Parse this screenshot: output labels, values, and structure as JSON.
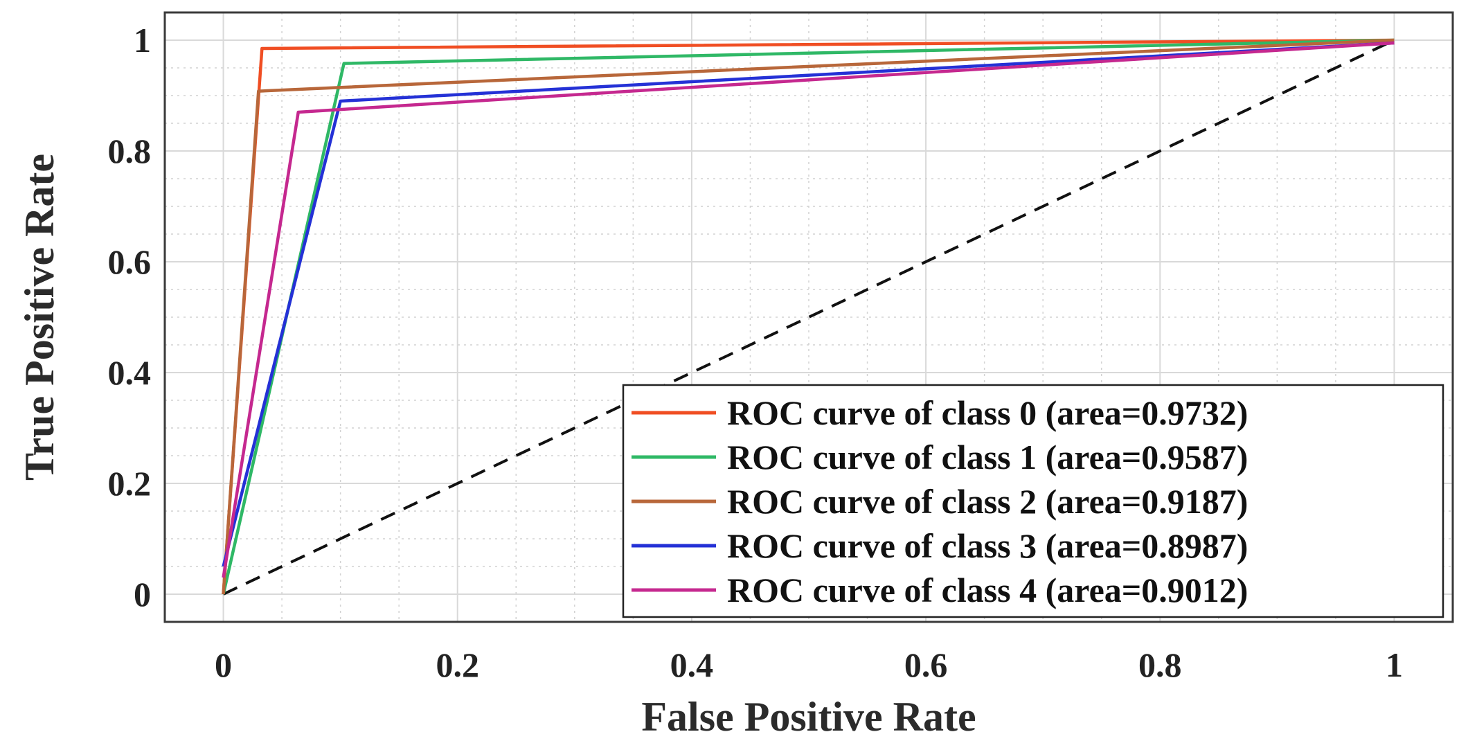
{
  "chart_data": {
    "type": "line",
    "title": "",
    "xlabel": "False Positive Rate",
    "ylabel": "True Positive Rate",
    "xlim": [
      -0.05,
      1.05
    ],
    "ylim": [
      -0.05,
      1.05
    ],
    "xticks": [
      0,
      0.2,
      0.4,
      0.6,
      0.8,
      1
    ],
    "xtick_labels": [
      "0",
      "0.2",
      "0.4",
      "0.6",
      "0.8",
      "1"
    ],
    "yticks": [
      0,
      0.2,
      0.4,
      0.6,
      0.8,
      1
    ],
    "ytick_labels": [
      "0",
      "0.2",
      "0.4",
      "0.6",
      "0.8",
      "1"
    ],
    "grid": true,
    "minor_grid": true,
    "legend_position": "bottom-right",
    "series": [
      {
        "name": "ROC curve of class 0 (area=0.9732)",
        "color": "#f04e23",
        "x": [
          0,
          0.033,
          1
        ],
        "y": [
          0,
          0.985,
          1
        ]
      },
      {
        "name": "ROC curve of class 1 (area=0.9587)",
        "color": "#2fb866",
        "x": [
          0,
          0.103,
          1
        ],
        "y": [
          0,
          0.958,
          1
        ]
      },
      {
        "name": "ROC curve of class 2 (area=0.9187)",
        "color": "#b8673a",
        "x": [
          0,
          0.03,
          1
        ],
        "y": [
          0,
          0.908,
          1
        ]
      },
      {
        "name": "ROC curve of class 3 (area=0.8987)",
        "color": "#2431d6",
        "x": [
          0,
          0.1,
          1
        ],
        "y": [
          0.05,
          0.89,
          0.995
        ]
      },
      {
        "name": "ROC curve of class 4 (area=0.9012)",
        "color": "#c5288f",
        "x": [
          0,
          0.064,
          1
        ],
        "y": [
          0.03,
          0.87,
          0.995
        ]
      }
    ],
    "reference_line": {
      "name": "chance",
      "color": "#111111",
      "x": [
        0,
        1
      ],
      "y": [
        0,
        1
      ],
      "style": "dashed"
    }
  }
}
